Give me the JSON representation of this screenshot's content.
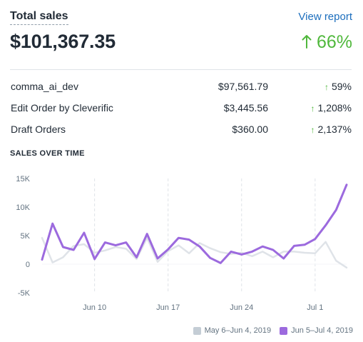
{
  "header": {
    "title": "Total sales",
    "view_report": "View report",
    "total_value": "$101,367.35",
    "total_change": "66%"
  },
  "breakdown": [
    {
      "name": "comma_ai_dev",
      "amount": "$97,561.79",
      "change": "59%"
    },
    {
      "name": "Edit Order by Cleverific",
      "amount": "$3,445.56",
      "change": "1,208%"
    },
    {
      "name": "Draft Orders",
      "amount": "$360.00",
      "change": "2,137%"
    }
  ],
  "section": {
    "title": "SALES OVER TIME"
  },
  "colors": {
    "positive": "#50b83c",
    "link": "#1c6ebd",
    "current_series": "#9c6ade",
    "previous_series": "#dfe3e8"
  },
  "icons": {
    "change_arrow": "arrow-up-icon"
  },
  "chart_data": {
    "type": "line",
    "ylim": [
      -5000,
      15000
    ],
    "y_ticks": [
      15000,
      10000,
      5000,
      0,
      -5000
    ],
    "y_tick_labels": [
      "15K",
      "10K",
      "5K",
      "0",
      "-5K"
    ],
    "x_tick_labels": [
      {
        "label": "Jun 10",
        "index": 5
      },
      {
        "label": "Jun 17",
        "index": 12
      },
      {
        "label": "Jun 24",
        "index": 19
      },
      {
        "label": "Jul 1",
        "index": 26
      }
    ],
    "series": [
      {
        "name": "May 6–Jun 4, 2019",
        "color": "#dfe3e8",
        "values": [
          4600,
          300,
          1200,
          3200,
          3500,
          2000,
          2400,
          3000,
          2700,
          900,
          4600,
          400,
          2300,
          3300,
          1900,
          3700,
          2800,
          2100,
          1800,
          2000,
          1400,
          2200,
          1200,
          2200,
          2200,
          2000,
          1900,
          3900,
          600,
          -600
        ]
      },
      {
        "name": "Jun 5–Jul 4, 2019",
        "color": "#9c6ade",
        "values": [
          800,
          7100,
          3000,
          2500,
          5500,
          900,
          3800,
          3300,
          3800,
          1200,
          5300,
          1000,
          2600,
          4600,
          4300,
          3100,
          1100,
          200,
          2200,
          1700,
          2200,
          3100,
          2500,
          1000,
          3200,
          3400,
          4400,
          6800,
          9500,
          13900
        ]
      }
    ]
  }
}
